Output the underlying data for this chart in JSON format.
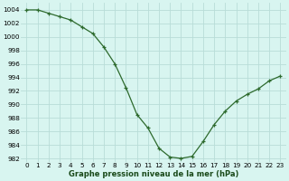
{
  "hours": [
    0,
    1,
    2,
    3,
    4,
    5,
    6,
    7,
    8,
    9,
    10,
    11,
    12,
    13,
    14,
    15,
    16,
    17,
    18,
    19,
    20,
    21,
    22,
    23
  ],
  "pressure": [
    1004,
    1004,
    1003.5,
    1003,
    1002.5,
    1001.5,
    1000.5,
    998.5,
    996,
    992.5,
    988.5,
    986.5,
    983.5,
    982.2,
    982.0,
    982.3,
    984.5,
    987.0,
    989.0,
    990.5,
    991.5,
    992.3,
    993.5,
    994.2
  ],
  "line_color": "#2d6a2d",
  "marker_color": "#2d6a2d",
  "bg_color": "#d8f5f0",
  "grid_color": "#b8ddd8",
  "xlabel": "Graphe pression niveau de la mer (hPa)",
  "ylim_min": 981.5,
  "ylim_max": 1005.0,
  "yticks": [
    982,
    984,
    986,
    988,
    990,
    992,
    994,
    996,
    998,
    1000,
    1002,
    1004
  ],
  "xticks": [
    0,
    1,
    2,
    3,
    4,
    5,
    6,
    7,
    8,
    9,
    10,
    11,
    12,
    13,
    14,
    15,
    16,
    17,
    18,
    19,
    20,
    21,
    22,
    23
  ],
  "xlabel_fontsize": 6.0,
  "xlabel_color": "#1a4a1a",
  "tick_fontsize": 5.2
}
